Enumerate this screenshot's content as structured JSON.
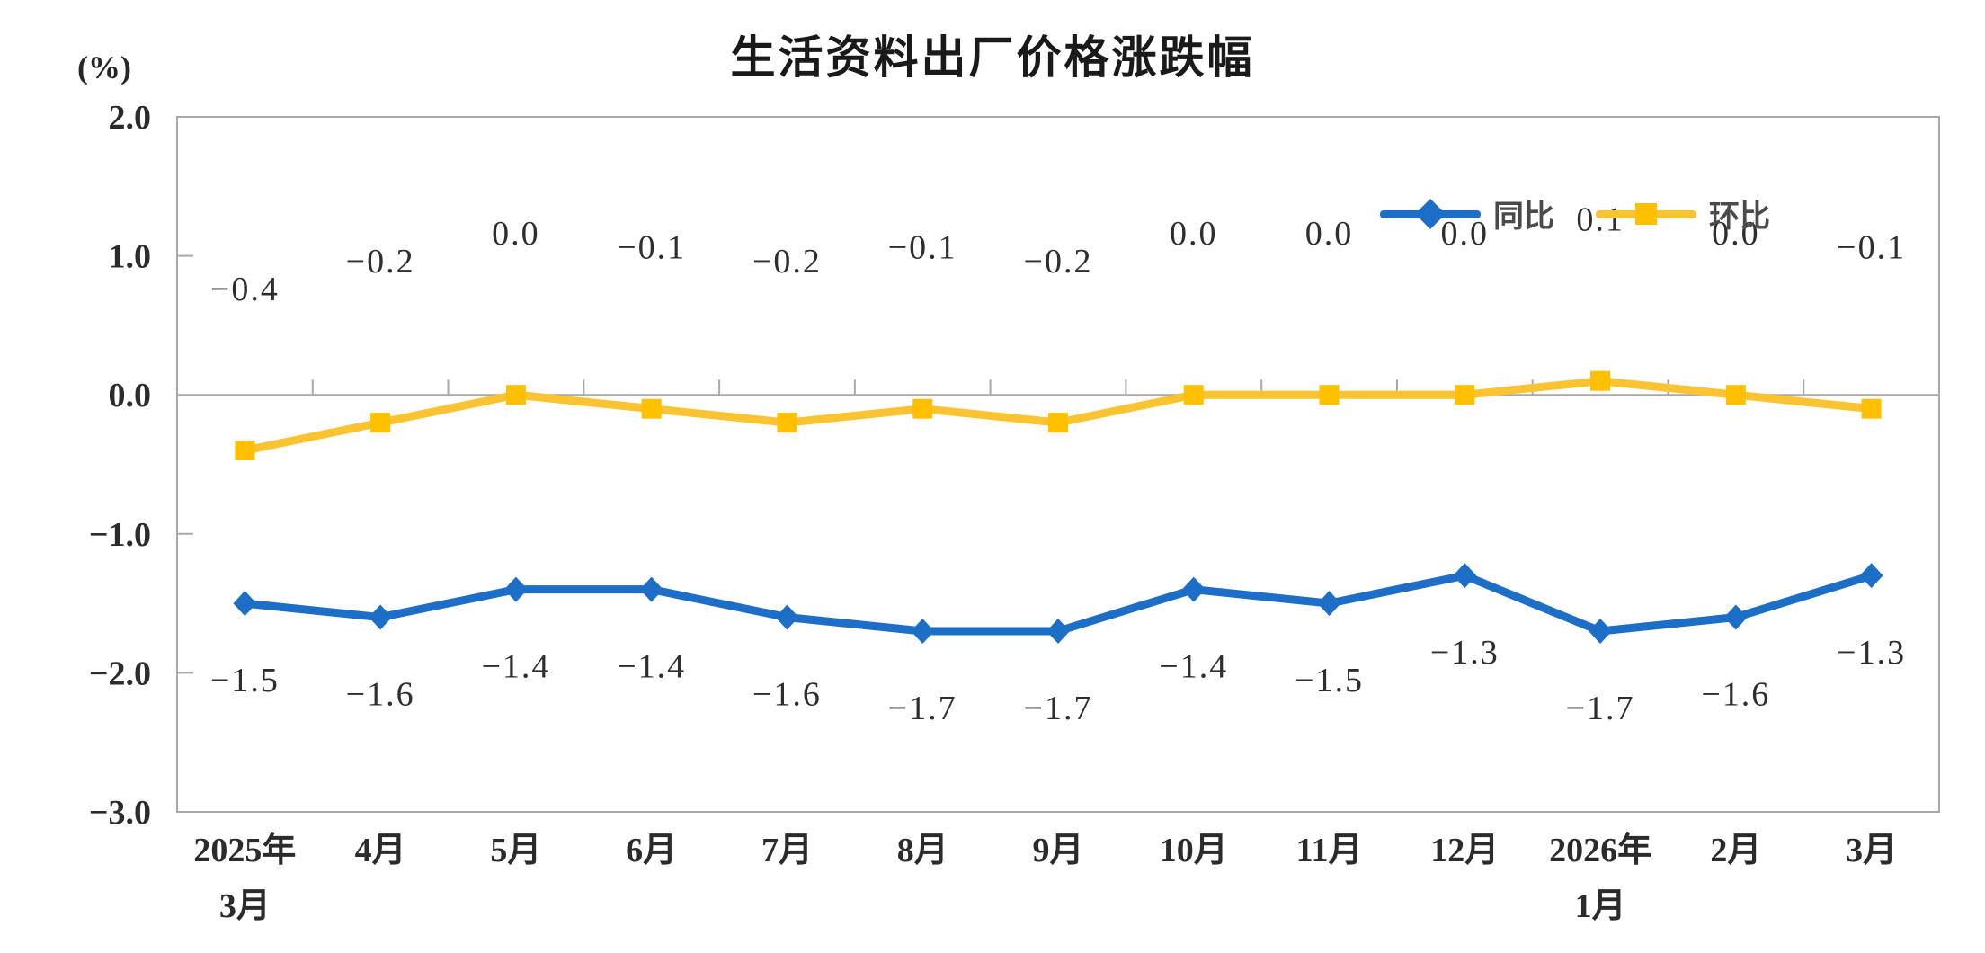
{
  "chart_data": {
    "type": "line",
    "title": "生活资料出厂价格涨跌幅",
    "ylabel": "(%)",
    "xlabel": "",
    "categories": [
      "2025年\n3月",
      "4月",
      "5月",
      "6月",
      "7月",
      "8月",
      "9月",
      "10月",
      "11月",
      "12月",
      "2026年\n1月",
      "2月",
      "3月"
    ],
    "series": [
      {
        "name": "同比",
        "marker": "diamond",
        "color": "#1c6ec6",
        "line_color": "#1c6ec6",
        "label_position": "below",
        "values": [
          -1.5,
          -1.6,
          -1.4,
          -1.4,
          -1.6,
          -1.7,
          -1.7,
          -1.4,
          -1.5,
          -1.3,
          -1.7,
          -1.6,
          -1.3
        ]
      },
      {
        "name": "环比",
        "marker": "square",
        "color": "#ffc000",
        "line_color": "#f9c331",
        "label_position": "above",
        "values": [
          -0.4,
          -0.2,
          0.0,
          -0.1,
          -0.2,
          -0.1,
          -0.2,
          0.0,
          0.0,
          0.0,
          0.1,
          0.0,
          -0.1
        ]
      }
    ],
    "ylim": [
      -3.0,
      2.0
    ],
    "yticks": [
      2.0,
      1.0,
      0.0,
      -1.0,
      -2.0,
      -3.0
    ],
    "grid": "zero-line-only",
    "legend_position": "top-right",
    "colors": {
      "axis": "#a9a9a9",
      "tick_text": "#2b2b2b",
      "title_text": "#1a1a1a"
    }
  }
}
